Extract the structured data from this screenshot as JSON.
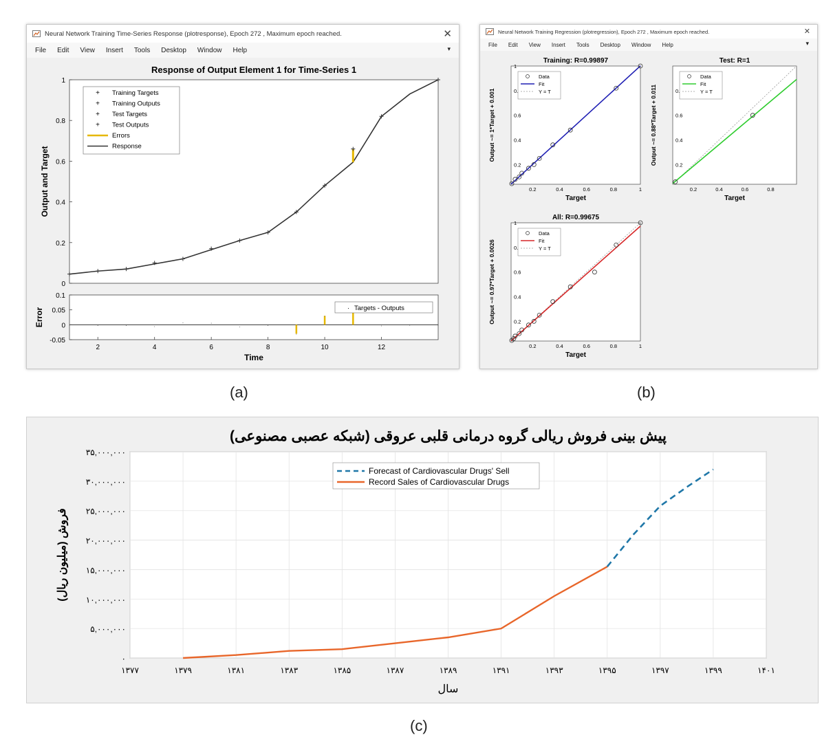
{
  "panel_a": {
    "window_title": "Neural Network Training Time-Series Response (plotresponse), Epoch 272 , Maximum epoch reached.",
    "menu": [
      "File",
      "Edit",
      "View",
      "Insert",
      "Tools",
      "Desktop",
      "Window",
      "Help"
    ],
    "caption": "(a)"
  },
  "panel_b": {
    "window_title": "Neural Network Training Regression (plotregression), Epoch 272 , Maximum epoch reached.",
    "menu": [
      "File",
      "Edit",
      "View",
      "Insert",
      "Tools",
      "Desktop",
      "Window",
      "Help"
    ],
    "caption": "(b)"
  },
  "panel_c": {
    "caption": "(c)"
  },
  "colors": {
    "response": "#333333",
    "training_fit": "#1f1fb4",
    "test_fit": "#2ecc2e",
    "all_fit": "#d62728",
    "record": "#e8662a",
    "forecast": "#1f77a8",
    "errors": "#e6b800"
  },
  "chart_data": [
    {
      "id": "response",
      "type": "line",
      "title": "Response of Output Element 1 for Time-Series 1",
      "xlabel": "Time",
      "ylabel": "Output and Target",
      "xlim": [
        1,
        14
      ],
      "ylim": [
        0,
        1
      ],
      "yticks": [
        "0",
        "0.2",
        "0.4",
        "0.6",
        "0.8",
        "1"
      ],
      "legend": [
        "Training Targets",
        "Training Outputs",
        "Test Targets",
        "Test Outputs",
        "Errors",
        "Response"
      ],
      "legend_position": "top-left",
      "x": [
        1,
        2,
        3,
        4,
        5,
        6,
        7,
        8,
        9,
        10,
        11,
        12,
        13,
        14
      ],
      "series": [
        {
          "name": "Response",
          "values": [
            0.045,
            0.06,
            0.07,
            0.095,
            0.12,
            0.165,
            0.21,
            0.25,
            0.35,
            0.48,
            0.595,
            0.82,
            0.93,
            1.0
          ]
        },
        {
          "name": "Training Targets",
          "values": [
            0.045,
            0.06,
            0.07,
            0.1,
            0.12,
            0.17,
            0.21,
            0.25,
            0.35,
            0.48,
            null,
            0.82,
            null,
            1.0
          ]
        },
        {
          "name": "Test Targets",
          "values": [
            null,
            null,
            null,
            null,
            null,
            null,
            null,
            null,
            null,
            null,
            0.66,
            null,
            null,
            null
          ]
        }
      ]
    },
    {
      "id": "error",
      "type": "bar",
      "ylabel": "Error",
      "xlabel": "Time",
      "xlim": [
        1,
        14
      ],
      "ylim": [
        -0.05,
        0.1
      ],
      "xticks": [
        "2",
        "4",
        "6",
        "8",
        "10",
        "12"
      ],
      "yticks": [
        "-0.05",
        "0",
        "0.05",
        "0.1"
      ],
      "legend": [
        "Targets - Outputs"
      ],
      "legend_position": "top-right",
      "x": [
        1,
        2,
        3,
        4,
        5,
        6,
        7,
        8,
        9,
        10,
        11,
        12,
        13,
        14
      ],
      "values": [
        0.0,
        -0.002,
        -0.001,
        -0.005,
        0.008,
        0.006,
        -0.006,
        -0.002,
        -0.03,
        0.03,
        0.065,
        -0.003,
        0.0,
        0.0
      ]
    },
    {
      "id": "training",
      "type": "scatter",
      "title": "Training: R=0.99897",
      "xlabel": "Target",
      "ylabel": "Output ~= 1*Target + 0.001",
      "xlim": [
        0.04,
        1
      ],
      "ylim": [
        0.04,
        1
      ],
      "xticks": [
        "0.2",
        "0.4",
        "0.6",
        "0.8",
        "1"
      ],
      "yticks": [
        "0.2",
        "0.4",
        "0.6",
        "0.8",
        "1"
      ],
      "legend": [
        "Data",
        "Fit",
        "Y = T"
      ],
      "fit": {
        "slope": 1,
        "intercept": 0.001
      },
      "points": [
        [
          0.045,
          0.045
        ],
        [
          0.07,
          0.08
        ],
        [
          0.1,
          0.1
        ],
        [
          0.12,
          0.13
        ],
        [
          0.17,
          0.17
        ],
        [
          0.21,
          0.2
        ],
        [
          0.25,
          0.25
        ],
        [
          0.35,
          0.36
        ],
        [
          0.48,
          0.48
        ],
        [
          0.82,
          0.82
        ],
        [
          1.0,
          1.0
        ]
      ]
    },
    {
      "id": "test",
      "type": "scatter",
      "title": "Test: R=1",
      "xlabel": "Target",
      "ylabel": "Output ~= 0.88*Target + 0.011",
      "xlim": [
        0.04,
        1
      ],
      "ylim": [
        0.04,
        1
      ],
      "xticks": [
        "0.2",
        "0.4",
        "0.6",
        "0.8"
      ],
      "yticks": [
        "0.2",
        "0.4",
        "0.6",
        "0.8"
      ],
      "legend": [
        "Data",
        "Fit",
        "Y = T"
      ],
      "fit": {
        "slope": 0.88,
        "intercept": 0.011
      },
      "points": [
        [
          0.06,
          0.06
        ],
        [
          0.66,
          0.6
        ]
      ]
    },
    {
      "id": "all",
      "type": "scatter",
      "title": "All: R=0.99675",
      "xlabel": "Target",
      "ylabel": "Output ~= 0.97*Target + 0.0026",
      "xlim": [
        0.04,
        1
      ],
      "ylim": [
        0.04,
        1
      ],
      "xticks": [
        "0.2",
        "0.4",
        "0.6",
        "0.8",
        "1"
      ],
      "yticks": [
        "0.2",
        "0.4",
        "0.6",
        "0.8",
        "1"
      ],
      "legend": [
        "Data",
        "Fit",
        "Y = T"
      ],
      "fit": {
        "slope": 0.97,
        "intercept": 0.0026
      },
      "points": [
        [
          0.045,
          0.045
        ],
        [
          0.06,
          0.06
        ],
        [
          0.07,
          0.08
        ],
        [
          0.1,
          0.1
        ],
        [
          0.12,
          0.13
        ],
        [
          0.17,
          0.17
        ],
        [
          0.21,
          0.2
        ],
        [
          0.25,
          0.25
        ],
        [
          0.35,
          0.36
        ],
        [
          0.48,
          0.48
        ],
        [
          0.66,
          0.6
        ],
        [
          0.82,
          0.82
        ],
        [
          1.0,
          1.0
        ]
      ]
    },
    {
      "id": "forecast",
      "type": "line",
      "title": "پیش بینی فروش ریالی گروه درمانی قلبی عروقی (شبکه عصبی مصنوعی)",
      "xlabel": "سال",
      "ylabel": "فروش (میلیون ریال)",
      "xlim": [
        1377,
        1401
      ],
      "ylim": [
        0,
        35000000
      ],
      "xticks": [
        "۱۳۷۷",
        "۱۳۷۹",
        "۱۳۸۱",
        "۱۳۸۳",
        "۱۳۸۵",
        "۱۳۸۷",
        "۱۳۸۹",
        "۱۳۹۱",
        "۱۳۹۳",
        "۱۳۹۵",
        "۱۳۹۷",
        "۱۳۹۹",
        "۱۴۰۱"
      ],
      "yticks": [
        "۰",
        "۵,۰۰۰,۰۰۰",
        "۱۰,۰۰۰,۰۰۰",
        "۱۵,۰۰۰,۰۰۰",
        "۲۰,۰۰۰,۰۰۰",
        "۲۵,۰۰۰,۰۰۰",
        "۳۰,۰۰۰,۰۰۰",
        "۳۵,۰۰۰,۰۰۰"
      ],
      "grid": true,
      "legend_position": "top-center",
      "series": [
        {
          "name": "Forecast of Cardiovascular Drugs' Sell",
          "x": [
            1395,
            1396,
            1397,
            1398,
            1399
          ],
          "values": [
            15500000,
            21000000,
            25800000,
            29000000,
            32000000
          ]
        },
        {
          "name": "Record Sales of Cardiovascular Drugs",
          "x": [
            1379,
            1381,
            1383,
            1385,
            1387,
            1389,
            1391,
            1393,
            1395
          ],
          "values": [
            0,
            500000,
            1200000,
            1500000,
            2500000,
            3500000,
            5000000,
            10500000,
            15500000
          ]
        }
      ]
    }
  ]
}
